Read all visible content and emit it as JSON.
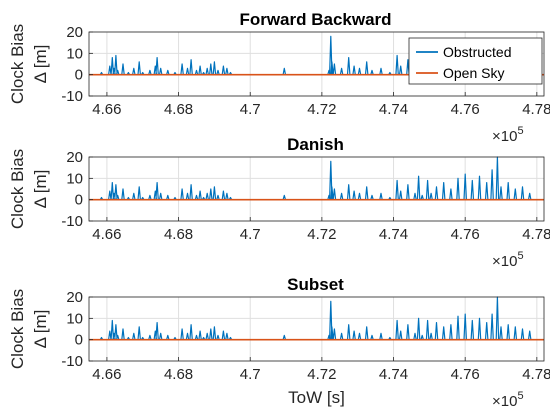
{
  "chart_data": [
    {
      "type": "line",
      "title": "Forward Backward",
      "ylabel_line1": "Clock Bias",
      "ylabel_line2": "Δ [m]",
      "xlabel": "",
      "x_exponent": "×10^5",
      "xlim": [
        4.655,
        4.782
      ],
      "ylim": [
        -10,
        20
      ],
      "xticks": [
        "4.66",
        "4.68",
        "4.7",
        "4.72",
        "4.74",
        "4.76",
        "4.78"
      ],
      "yticks": [
        "-10",
        "0",
        "10",
        "20"
      ],
      "grid": true,
      "legend_position": "top-right",
      "show_legend": true,
      "series": [
        {
          "name": "Obstructed",
          "color": "#0072BD",
          "x": [
            4.6585,
            4.6608,
            4.6615,
            4.662,
            4.6625,
            4.663,
            4.6645,
            4.666,
            4.6675,
            4.669,
            4.67,
            4.672,
            4.6735,
            4.674,
            4.675,
            4.677,
            4.679,
            4.681,
            4.6825,
            4.6835,
            4.685,
            4.686,
            4.687,
            4.688,
            4.689,
            4.69,
            4.691,
            4.6925,
            4.6935,
            4.6945,
            4.6955,
            4.7095,
            4.722,
            4.7225,
            4.7228,
            4.7235,
            4.7255,
            4.7275,
            4.729,
            4.7305,
            4.7325,
            4.734,
            4.7365,
            4.739,
            4.741,
            4.742,
            4.744,
            4.746,
            4.747,
            4.748,
            4.7495,
            4.7505,
            4.752
          ],
          "y": [
            1,
            4,
            8,
            3,
            9,
            2,
            5,
            1,
            3,
            6,
            1,
            2,
            4,
            8,
            3,
            2,
            1,
            5,
            3,
            7,
            2,
            4,
            1,
            3,
            5,
            6,
            2,
            4,
            3,
            1,
            0,
            3,
            2,
            18,
            6,
            5,
            3,
            8,
            4,
            3,
            6,
            2,
            3,
            1,
            9,
            4,
            7,
            3,
            10,
            2,
            6,
            3,
            1
          ]
        },
        {
          "name": "Open Sky",
          "color": "#D95319",
          "x": [
            4.655,
            4.782
          ],
          "y": [
            0,
            0
          ]
        }
      ]
    },
    {
      "type": "line",
      "title": "Danish",
      "ylabel_line1": "Clock Bias",
      "ylabel_line2": "Δ [m]",
      "xlabel": "",
      "x_exponent": "×10^5",
      "xlim": [
        4.655,
        4.782
      ],
      "ylim": [
        -10,
        20
      ],
      "xticks": [
        "4.66",
        "4.68",
        "4.7",
        "4.72",
        "4.74",
        "4.76",
        "4.78"
      ],
      "yticks": [
        "-10",
        "0",
        "10",
        "20"
      ],
      "grid": true,
      "show_legend": false,
      "series": [
        {
          "name": "Obstructed",
          "color": "#0072BD",
          "x": [
            4.6585,
            4.6608,
            4.6615,
            4.662,
            4.6625,
            4.663,
            4.6645,
            4.666,
            4.6675,
            4.669,
            4.67,
            4.672,
            4.6735,
            4.674,
            4.675,
            4.677,
            4.679,
            4.681,
            4.6825,
            4.6835,
            4.685,
            4.686,
            4.687,
            4.688,
            4.689,
            4.69,
            4.691,
            4.6925,
            4.6935,
            4.6945,
            4.6955,
            4.7095,
            4.722,
            4.7225,
            4.7228,
            4.7235,
            4.7255,
            4.7275,
            4.729,
            4.7305,
            4.7325,
            4.734,
            4.7365,
            4.739,
            4.741,
            4.742,
            4.744,
            4.746,
            4.747,
            4.748,
            4.7495,
            4.7505,
            4.752,
            4.754,
            4.756,
            4.758,
            4.76,
            4.762,
            4.764,
            4.766,
            4.7675,
            4.769,
            4.77,
            4.772,
            4.774,
            4.776,
            4.778
          ],
          "y": [
            1,
            4,
            8,
            3,
            7,
            2,
            5,
            1,
            3,
            6,
            1,
            2,
            4,
            8,
            3,
            2,
            1,
            5,
            3,
            7,
            2,
            4,
            1,
            3,
            5,
            6,
            2,
            4,
            3,
            1,
            0,
            2,
            2,
            18,
            6,
            5,
            3,
            7,
            4,
            3,
            6,
            2,
            3,
            1,
            9,
            4,
            7,
            3,
            11,
            2,
            9,
            3,
            6,
            8,
            5,
            10,
            12,
            9,
            11,
            8,
            14,
            20,
            6,
            8,
            5,
            6,
            3
          ]
        },
        {
          "name": "Open Sky",
          "color": "#D95319",
          "x": [
            4.655,
            4.782
          ],
          "y": [
            0,
            0
          ]
        }
      ]
    },
    {
      "type": "line",
      "title": "Subset",
      "ylabel_line1": "Clock Bias",
      "ylabel_line2": "Δ [m]",
      "xlabel": "ToW [s]",
      "x_exponent": "×10^5",
      "xlim": [
        4.655,
        4.782
      ],
      "ylim": [
        -10,
        20
      ],
      "xticks": [
        "4.66",
        "4.68",
        "4.7",
        "4.72",
        "4.74",
        "4.76",
        "4.78"
      ],
      "yticks": [
        "-10",
        "0",
        "10",
        "20"
      ],
      "grid": true,
      "show_legend": false,
      "series": [
        {
          "name": "Obstructed",
          "color": "#0072BD",
          "x": [
            4.6585,
            4.6608,
            4.6615,
            4.662,
            4.6625,
            4.663,
            4.6645,
            4.666,
            4.6675,
            4.669,
            4.67,
            4.672,
            4.6735,
            4.674,
            4.675,
            4.677,
            4.679,
            4.681,
            4.6825,
            4.6835,
            4.685,
            4.686,
            4.687,
            4.688,
            4.689,
            4.69,
            4.691,
            4.6925,
            4.6935,
            4.6945,
            4.6955,
            4.7095,
            4.722,
            4.7225,
            4.7228,
            4.7235,
            4.7255,
            4.7275,
            4.729,
            4.7305,
            4.7325,
            4.734,
            4.7365,
            4.739,
            4.741,
            4.742,
            4.744,
            4.746,
            4.747,
            4.748,
            4.7495,
            4.7505,
            4.752,
            4.754,
            4.756,
            4.758,
            4.76,
            4.762,
            4.764,
            4.766,
            4.7675,
            4.769,
            4.77,
            4.772,
            4.774,
            4.776,
            4.778
          ],
          "y": [
            1,
            4,
            9,
            3,
            7,
            2,
            5,
            1,
            3,
            6,
            1,
            2,
            4,
            8,
            3,
            2,
            1,
            5,
            3,
            7,
            2,
            4,
            1,
            3,
            5,
            6,
            2,
            4,
            3,
            1,
            0,
            2,
            2,
            18,
            6,
            5,
            3,
            7,
            4,
            3,
            6,
            2,
            3,
            1,
            9,
            4,
            7,
            3,
            10,
            2,
            9,
            3,
            8,
            6,
            7,
            11,
            12,
            9,
            10,
            8,
            12,
            20,
            6,
            7,
            6,
            5,
            4
          ]
        },
        {
          "name": "Open Sky",
          "color": "#D95319",
          "x": [
            4.655,
            4.782
          ],
          "y": [
            0,
            0
          ]
        }
      ]
    }
  ]
}
